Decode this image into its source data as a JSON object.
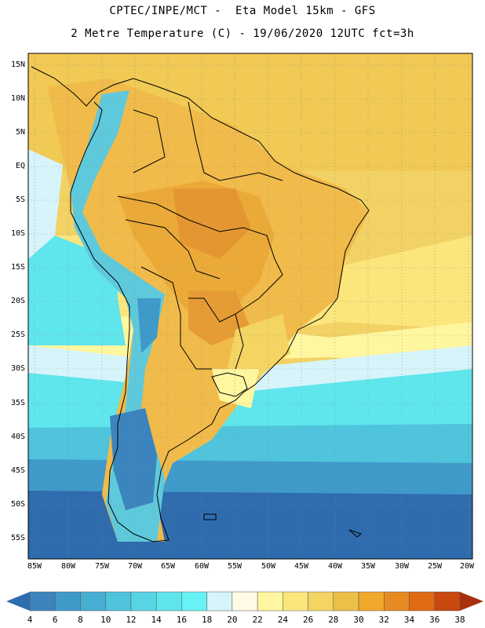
{
  "title": {
    "line1": "CPTEC/INPE/MCT -  Eta Model 15km - GFS",
    "line2": "2 Metre Temperature (C) - 19/06/2020 12UTC fct=3h"
  },
  "map": {
    "lat_labels": [
      "15N",
      "10N",
      "5N",
      "EQ",
      "5S",
      "10S",
      "15S",
      "20S",
      "25S",
      "30S",
      "35S",
      "40S",
      "45S",
      "50S",
      "55S"
    ],
    "lon_labels": [
      "85W",
      "80W",
      "75W",
      "70W",
      "65W",
      "60W",
      "55W",
      "50W",
      "45W",
      "40W",
      "35W",
      "30W",
      "25W",
      "20W"
    ]
  },
  "colorbar": {
    "labels": [
      "4",
      "6",
      "8",
      "10",
      "12",
      "14",
      "16",
      "18",
      "20",
      "22",
      "24",
      "26",
      "28",
      "30",
      "32",
      "34",
      "36",
      "38"
    ],
    "colors": [
      "#2f6cae",
      "#3b84bd",
      "#3f9ac9",
      "#48afd4",
      "#4fc4dc",
      "#57d5e4",
      "#5fe6ec",
      "#67f2f5",
      "#d6f4fa",
      "#fffbe6",
      "#fff6a0",
      "#fbe67c",
      "#f4d462",
      "#ecbf48",
      "#f0a82a",
      "#e88a22",
      "#e06a14",
      "#c84810",
      "#a8300c"
    ]
  }
}
